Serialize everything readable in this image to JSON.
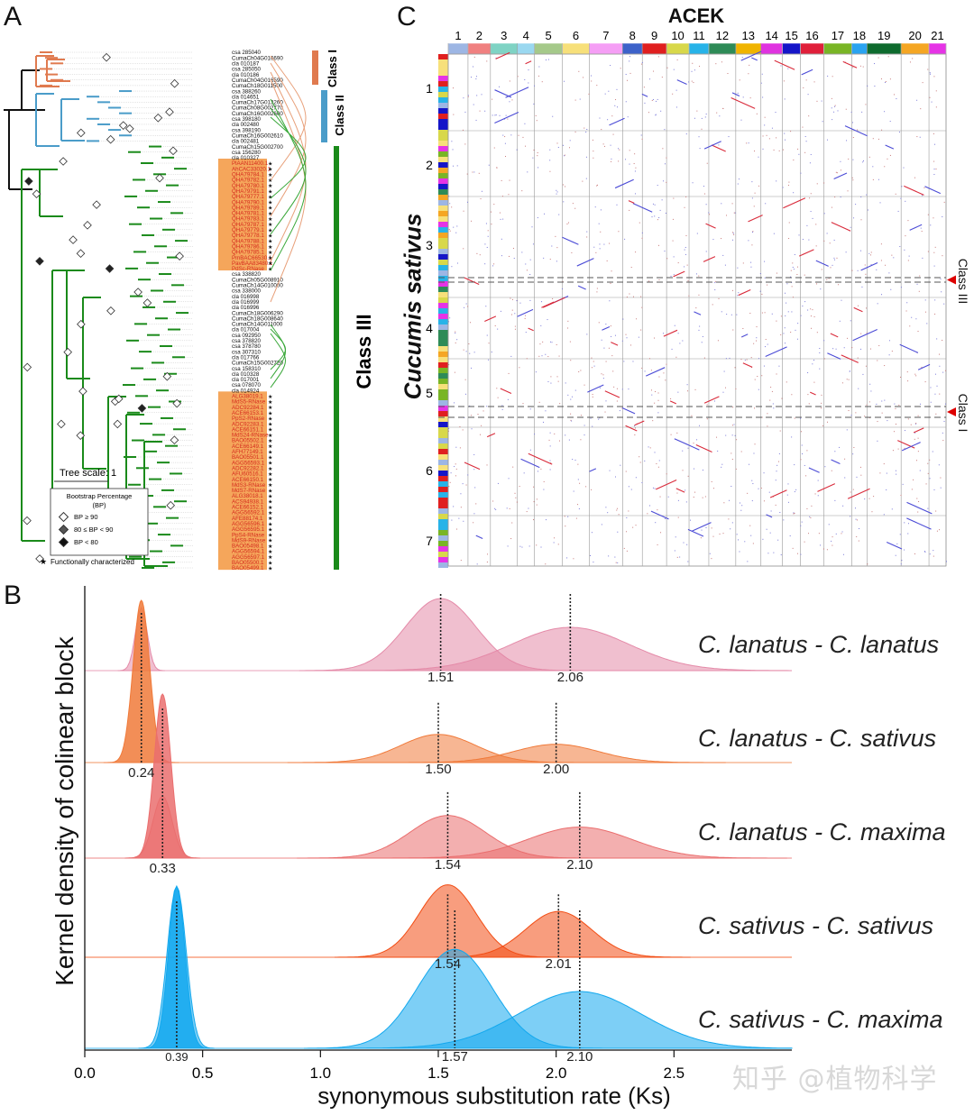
{
  "panels": {
    "a": "A",
    "b": "B",
    "c": "C"
  },
  "tree": {
    "scale_label": "Tree scale: 1",
    "legend_title": "Bootstrap Percentage",
    "legend_subtitle": "(BP)",
    "legend_items": [
      "BP ≥ 90",
      "80 ≤ BP < 90",
      "BP < 80"
    ],
    "functional_note": "Functionally characterized",
    "class_labels": [
      "Class I",
      "Class II",
      "Class III"
    ],
    "colors": {
      "class1": "#e07a4f",
      "class2": "#4a9cc9",
      "class3": "#1a8a1a",
      "highlight": "#f5a65b",
      "red_text": "#d52b1e"
    },
    "leaves_top": [
      "csa 285040",
      "CumaCh04G016690",
      "cla 010187",
      "csa 285050",
      "cla 010186",
      "CumaCh04G016590",
      "CumaCh18G011500",
      "csa 388260",
      "cla 014651",
      "CumaCh17G013260",
      "CumaCh08G002770",
      "CumaCh16G002600",
      "csa 398180",
      "cla 002480",
      "csa 398190",
      "CumaCh16G002610",
      "cla 002481",
      "CumaCh15G002700",
      "csa 156280",
      "cla 010327"
    ],
    "leaves_red1": [
      "PlAAN11400.1",
      "AhCAC33020.1",
      "QHA79784.1",
      "QHA79782.1",
      "QHA79780.1",
      "QHA79791.1",
      "QHA79777.1",
      "QHA79790.1",
      "QHA79789.1",
      "QHA79781.1",
      "QHA79783.1",
      "QHA79787.1",
      "QHA79779.1",
      "QHA79778.1",
      "QHA79788.1",
      "QHA79786.1",
      "QHA79785.1",
      "PmBAC66530.1",
      "PavBAA83480.1",
      "PdSc-RNase"
    ],
    "leaves_mid": [
      "csa 338820",
      "CumaCh05G008910",
      "CumaCh14G010000",
      "csa 338000",
      "cla 016998",
      "cla 016999",
      "cla 016996",
      "CumaCh18G006290",
      "CumaCh18G008640",
      "CumaCh14G011000",
      "cla 017004",
      "csa 092950",
      "csa 378820",
      "csa 378780",
      "csa 307310",
      "cla 017766",
      "CumaCh15G002720",
      "csa 158310",
      "cla 010328",
      "cla 017001",
      "csa 078070",
      "cla 014924"
    ],
    "leaves_red2": [
      "ALG38019.1",
      "MdS5-RNase",
      "ADC92284.1",
      "ACE66153.1",
      "PpS2-RNase",
      "ADC92283.1",
      "ACE66151.1",
      "MdS24-RNase",
      "BAO05502.1",
      "ACE66149.1",
      "AFH77149.1",
      "BAO05501.1",
      "AGG56593.1",
      "ADC92282.1",
      "AFU60516.1",
      "ACE66150.1",
      "MdS3-RNase",
      "MdS7-RNase",
      "ALG38018.1",
      "ACS94938.1",
      "ACE66152.1",
      "AGG56592.1",
      "AFE88174.1",
      "AGG56596.1",
      "AGG56595.1",
      "PpS4-RNase",
      "MdS9-RNase",
      "BAO05498.1",
      "AGG56594.1",
      "AGG56597.1",
      "BAO05500.1",
      "BAO05499.1"
    ]
  },
  "dotplot": {
    "title": "ACEK",
    "ylabel": "Cucumis sativus",
    "col_labels": [
      "1",
      "2",
      "3",
      "4",
      "5",
      "6",
      "7",
      "8",
      "9",
      "10",
      "11",
      "12",
      "13",
      "14",
      "15",
      "16",
      "17",
      "18",
      "19",
      "20",
      "21"
    ],
    "col_colors": [
      "#9db6e4",
      "#f08080",
      "#7fd3c4",
      "#9ad8f0",
      "#a5c98a",
      "#f7e07a",
      "#f59ef5",
      "#3d62c9",
      "#e01f1f",
      "#d8d84a",
      "#27b3e8",
      "#2e8b57",
      "#f0b400",
      "#e033e0",
      "#1515c8",
      "#e01f3a",
      "#79b525",
      "#2aa3f0",
      "#0e6b2e",
      "#f5a623",
      "#e633e6"
    ],
    "row_labels": [
      "1",
      "2",
      "3",
      "4",
      "5",
      "6",
      "7"
    ],
    "class_markers": [
      "Class III",
      "Class I"
    ]
  },
  "chart_data": {
    "type": "area",
    "title": "",
    "xlabel": "synonymous substitution rate (Ks)",
    "ylabel": "Kernel density of colinear block",
    "xlim": [
      0,
      3.0
    ],
    "xticks": [
      "0.0",
      "0.5",
      "1.0",
      "1.5",
      "2.0",
      "2.5"
    ],
    "series": [
      {
        "name": "C. lanatus - C. lanatus",
        "color": "#e48aa8",
        "peaks": [
          {
            "mu": 0.24,
            "sigma": 0.025,
            "amp": 1.0
          },
          {
            "mu": 1.51,
            "sigma": 0.15,
            "amp": 0.8
          },
          {
            "mu": 2.06,
            "sigma": 0.25,
            "amp": 0.48
          }
        ],
        "labels": [
          {
            "x": 1.51,
            "text": "1.51"
          },
          {
            "x": 2.06,
            "text": "2.06"
          }
        ]
      },
      {
        "name": "C. lanatus - C. sativus",
        "color": "#f07a3a",
        "peaks": [
          {
            "mu": 0.24,
            "sigma": 0.025,
            "amp": 0.0
          },
          {
            "mu": 1.5,
            "sigma": 0.16,
            "amp": 0.4
          },
          {
            "mu": 2.0,
            "sigma": 0.18,
            "amp": 0.26
          }
        ],
        "labels": [
          {
            "x": 0.24,
            "text": "0.24"
          },
          {
            "x": 1.5,
            "text": "1.50"
          },
          {
            "x": 2.0,
            "text": "2.00"
          }
        ]
      },
      {
        "name": "C. lanatus - C. maxima",
        "color": "#ea6e6e",
        "peaks": [
          {
            "mu": 0.33,
            "sigma": 0.04,
            "amp": 1.0
          },
          {
            "mu": 1.54,
            "sigma": 0.16,
            "amp": 0.55
          },
          {
            "mu": 2.1,
            "sigma": 0.22,
            "amp": 0.4
          }
        ],
        "labels": [
          {
            "x": 0.33,
            "text": "0.33"
          },
          {
            "x": 1.54,
            "text": "1.54"
          },
          {
            "x": 2.1,
            "text": "2.10"
          }
        ]
      },
      {
        "name": "C. sativus - C. sativus",
        "color": "#f24d14",
        "peaks": [
          {
            "mu": 1.54,
            "sigma": 0.12,
            "amp": 0.98
          },
          {
            "mu": 2.01,
            "sigma": 0.14,
            "amp": 0.62
          }
        ],
        "labels": [
          {
            "x": 1.54,
            "text": "1.54"
          },
          {
            "x": 2.01,
            "text": "2.01"
          }
        ]
      },
      {
        "name": "C. sativus - C. maxima",
        "color": "#12a8ee",
        "peaks": [
          {
            "mu": 0.39,
            "sigma": 0.04,
            "amp": 1.0
          },
          {
            "mu": 1.57,
            "sigma": 0.16,
            "amp": 0.61
          },
          {
            "mu": 2.1,
            "sigma": 0.26,
            "amp": 0.35
          }
        ],
        "labels": [
          {
            "x": 0.39,
            "text": "0.39"
          },
          {
            "x": 1.57,
            "text": "1.57"
          },
          {
            "x": 2.1,
            "text": "2.10"
          }
        ]
      }
    ]
  },
  "watermark": "知乎 @植物科学"
}
